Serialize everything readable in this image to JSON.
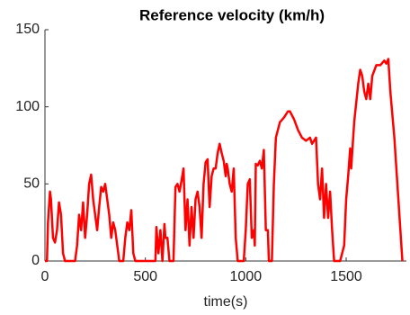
{
  "chart_data": {
    "type": "line",
    "title": "Reference velocity (km/h)",
    "x_label": "time(s)",
    "xlim": [
      0,
      1800
    ],
    "xticks": [
      0,
      500,
      1000,
      1500
    ],
    "ylim": [
      0,
      150
    ],
    "yticks": [
      0,
      50,
      100,
      150
    ],
    "series": [
      {
        "name": "Reference velocity",
        "color": "#ff0000",
        "x": [
          0,
          10,
          15,
          25,
          30,
          40,
          50,
          60,
          70,
          80,
          90,
          100,
          150,
          160,
          170,
          180,
          190,
          200,
          210,
          220,
          230,
          240,
          250,
          260,
          270,
          280,
          290,
          300,
          310,
          320,
          330,
          340,
          350,
          360,
          370,
          390,
          400,
          410,
          420,
          430,
          440,
          450,
          550,
          555,
          565,
          575,
          585,
          595,
          600,
          610,
          620,
          640,
          650,
          660,
          670,
          680,
          690,
          700,
          710,
          720,
          730,
          740,
          750,
          760,
          770,
          780,
          790,
          800,
          810,
          815,
          820,
          830,
          840,
          850,
          860,
          870,
          880,
          890,
          900,
          905,
          910,
          920,
          930,
          940,
          950,
          960,
          990,
          1000,
          1010,
          1020,
          1030,
          1040,
          1045,
          1050,
          1060,
          1070,
          1080,
          1090,
          1100,
          1110,
          1115,
          1130,
          1140,
          1150,
          1170,
          1190,
          1210,
          1220,
          1240,
          1260,
          1280,
          1300,
          1320,
          1330,
          1350,
          1360,
          1370,
          1380,
          1390,
          1400,
          1410,
          1420,
          1430,
          1440,
          1470,
          1490,
          1500,
          1510,
          1520,
          1525,
          1530,
          1540,
          1560,
          1570,
          1580,
          1590,
          1600,
          1610,
          1620,
          1630,
          1650,
          1670,
          1690,
          1700,
          1710,
          1720,
          1730,
          1740,
          1750,
          1760,
          1770,
          1780
        ],
        "values": [
          0,
          0,
          25,
          45,
          40,
          15,
          12,
          20,
          38,
          30,
          5,
          0,
          0,
          10,
          30,
          20,
          38,
          15,
          30,
          50,
          56,
          40,
          30,
          20,
          35,
          48,
          45,
          50,
          40,
          30,
          15,
          25,
          20,
          10,
          0,
          0,
          15,
          25,
          20,
          33,
          5,
          0,
          0,
          22,
          5,
          20,
          0,
          24,
          15,
          15,
          0,
          0,
          48,
          50,
          45,
          52,
          60,
          20,
          40,
          10,
          35,
          15,
          40,
          45,
          35,
          15,
          50,
          64,
          66,
          50,
          35,
          55,
          60,
          60,
          70,
          76,
          70,
          65,
          55,
          63,
          60,
          50,
          45,
          60,
          15,
          0,
          0,
          20,
          50,
          53,
          15,
          20,
          10,
          63,
          62,
          65,
          60,
          72,
          20,
          20,
          0,
          0,
          50,
          80,
          90,
          93,
          97,
          97,
          92,
          85,
          80,
          78,
          80,
          76,
          80,
          50,
          40,
          60,
          28,
          50,
          28,
          45,
          20,
          0,
          0,
          10,
          40,
          55,
          73,
          60,
          70,
          90,
          115,
          124,
          120,
          110,
          105,
          115,
          105,
          120,
          127,
          127,
          130,
          128,
          131,
          110,
          95,
          80,
          60,
          40,
          20,
          0
        ]
      }
    ]
  }
}
